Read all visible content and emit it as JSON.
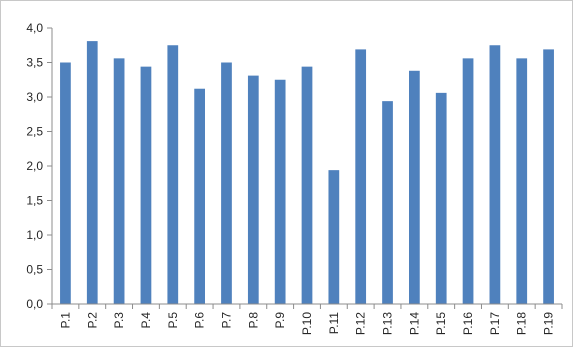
{
  "chart_data": {
    "type": "bar",
    "categories": [
      "P.1",
      "P.2",
      "P.3",
      "P.4",
      "P.5",
      "P.6",
      "P.7",
      "P.8",
      "P.9",
      "P.10",
      "P.11",
      "P.12",
      "P.13",
      "P.14",
      "P.15",
      "P.16",
      "P.17",
      "P.18",
      "P.19"
    ],
    "values": [
      3.5,
      3.81,
      3.56,
      3.44,
      3.75,
      3.12,
      3.5,
      3.31,
      3.25,
      3.44,
      1.94,
      3.69,
      2.94,
      3.38,
      3.06,
      3.56,
      3.75,
      3.56,
      3.69
    ],
    "y_ticks": [
      "0,0",
      "0,5",
      "1,0",
      "1,5",
      "2,0",
      "2,5",
      "3,0",
      "3,5",
      "4,0"
    ],
    "ylim": [
      0,
      4
    ],
    "grid": false,
    "legend": "none",
    "bar_color": "#4f81bd"
  }
}
